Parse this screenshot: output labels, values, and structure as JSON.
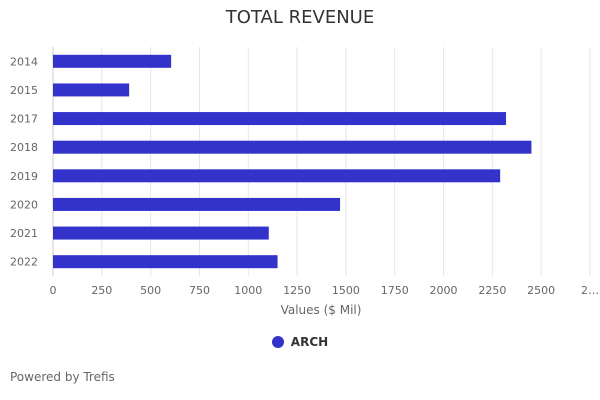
{
  "chart_data": {
    "type": "bar",
    "orientation": "horizontal",
    "title": "TOTAL REVENUE",
    "xlabel": "Values ($ Mil)",
    "ylabel": "",
    "categories": [
      "2014",
      "2015",
      "2017",
      "2018",
      "2019",
      "2020",
      "2021",
      "2022"
    ],
    "series": [
      {
        "name": "ARCH",
        "color": "#3333cc",
        "values": [
          605,
          390,
          2320,
          2450,
          2290,
          1470,
          1105,
          1150
        ]
      }
    ],
    "xlim": [
      0,
      2750
    ],
    "xticks": [
      "0",
      "250",
      "500",
      "750",
      "1000",
      "1250",
      "1500",
      "1750",
      "2000",
      "2250",
      "2500",
      "2…"
    ],
    "grid": true,
    "legend_position": "bottom"
  },
  "footer": {
    "credits": "Powered by Trefis"
  }
}
